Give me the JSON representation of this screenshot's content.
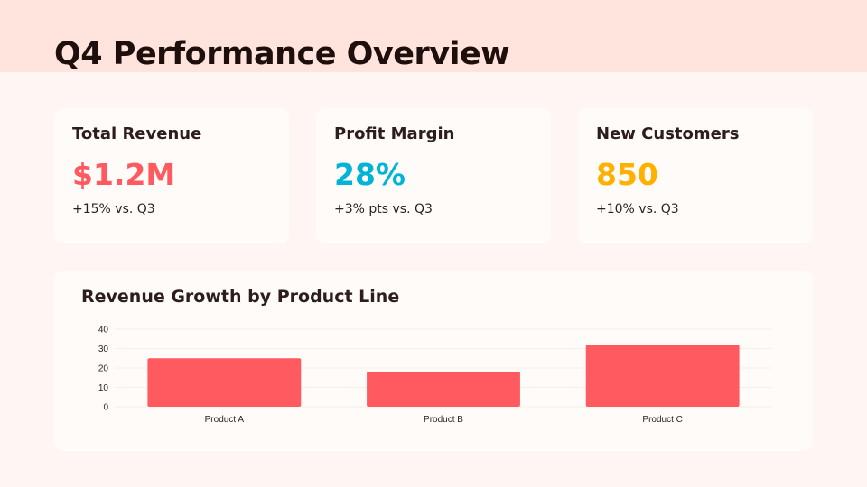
{
  "title": "Q4 Performance Overview",
  "kpis": [
    {
      "label": "Total Revenue",
      "value": "$1.2M",
      "change": "+15% vs. Q3",
      "color": "#ff5a5f"
    },
    {
      "label": "Profit Margin",
      "value": "28%",
      "change": "+3% pts vs. Q3",
      "color": "#00b4d8"
    },
    {
      "label": "New Customers",
      "value": "850",
      "change": "+10% vs. Q3",
      "color": "#ffb000"
    }
  ],
  "chart_data": {
    "type": "bar",
    "title": "Revenue Growth by Product Line",
    "categories": [
      "Product A",
      "Product B",
      "Product C"
    ],
    "values": [
      25,
      18,
      32
    ],
    "ylim": [
      0,
      40
    ],
    "yticks": [
      0,
      10,
      20,
      30,
      40
    ],
    "grid": true,
    "color": "#ff5a5f",
    "xlabel": "",
    "ylabel": ""
  }
}
